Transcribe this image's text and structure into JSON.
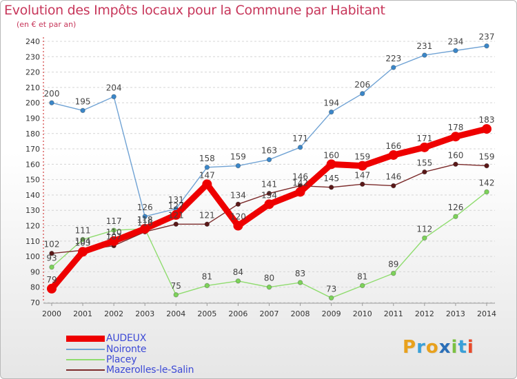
{
  "title": "Evolution des Impôts locaux pour la Commune par Habitant",
  "subtitle": "(en € et par an)",
  "chart_data": {
    "type": "line",
    "x": [
      2000,
      2001,
      2002,
      2003,
      2004,
      2005,
      2006,
      2007,
      2008,
      2009,
      2010,
      2011,
      2012,
      2013,
      2014
    ],
    "ylim": [
      70,
      240
    ],
    "yticks": [
      70,
      80,
      90,
      100,
      110,
      120,
      130,
      140,
      150,
      160,
      170,
      180,
      190,
      200,
      210,
      220,
      230,
      240
    ],
    "grid": "horizontal dashed",
    "legend_position": "bottom-left",
    "series": [
      {
        "name": "Noironte",
        "color": "#6fa2d4",
        "marker": "#3b87c9",
        "values": [
          200,
          195,
          204,
          126,
          131,
          158,
          159,
          163,
          171,
          194,
          206,
          223,
          231,
          234,
          237
        ]
      },
      {
        "name": "Placey",
        "color": "#8fdc6e",
        "marker": "#7dd35a",
        "values": [
          93,
          111,
          117,
          118,
          75,
          81,
          84,
          80,
          83,
          73,
          81,
          89,
          112,
          126,
          142
        ]
      },
      {
        "name": "Mazerolles-le-Salin",
        "color": "#7b2a2a",
        "marker": "#5a1818",
        "values": [
          102,
          104,
          107,
          116,
          121,
          121,
          134,
          141,
          146,
          145,
          147,
          146,
          155,
          160,
          159
        ]
      },
      {
        "name": "AUDEUX",
        "color": "#ee0000",
        "marker": "#ee0000",
        "values": [
          79,
          103,
          110,
          118,
          127,
          147,
          120,
          134,
          142,
          160,
          159,
          166,
          171,
          178,
          183
        ]
      }
    ],
    "legend_order": [
      "AUDEUX",
      "Noironte",
      "Placey",
      "Mazerolles-le-Salin"
    ]
  },
  "logo": {
    "letters": [
      "P",
      "r",
      "o",
      "x",
      "i",
      "t",
      "i"
    ],
    "colors": [
      "#e8a11d",
      "#3aa0d8",
      "#e8a11d",
      "#2a6fb8",
      "#7cc142",
      "#3aa0d8",
      "#e84a2b"
    ]
  }
}
